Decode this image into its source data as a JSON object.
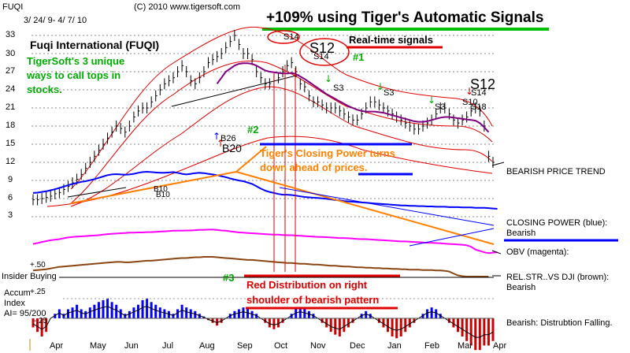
{
  "header": {
    "ticker": "FUQI",
    "date_range": "3/ 24/ 9- 4/ 7/ 10",
    "copyright": "(C) 2010 www.tigersoft.com",
    "headline": "+109% using Tiger's Automatic Signals",
    "company": "Fuqi International (FUQI)",
    "subtitle_lines": [
      "TigerSoft's 3 unique",
      "ways to call tops in",
      "stocks."
    ]
  },
  "colors": {
    "price_bars": "#000000",
    "ma_red": "#e00000",
    "ma_purple": "#800080",
    "closing_power": "#0000ff",
    "obv": "#ff00ff",
    "rel_strength": "#8b4513",
    "trend_orange": "#ff8000",
    "accum_pos": "#0000ff",
    "accum_neg": "#cc0000",
    "headline_underline": "#00c000",
    "label_green": "#00aa00"
  },
  "chart_data": {
    "type": "line",
    "title": "Fuqi International (FUQI)",
    "x_axis": {
      "labels": [
        "Apr",
        "May",
        "Jun",
        "Jul",
        "Aug",
        "Sep",
        "Oct",
        "Nov",
        "Dec",
        "Jan",
        "Feb",
        "Mar",
        "Apr"
      ]
    },
    "y_axis": {
      "ticks": [
        33,
        30,
        27,
        24,
        21,
        18,
        15,
        12,
        9,
        6,
        3
      ],
      "range": [
        3,
        33
      ]
    },
    "price_closes": [
      5.8,
      5.8,
      6,
      6.2,
      6.4,
      6.8,
      7,
      7.5,
      8,
      8.6,
      9.2,
      10,
      11,
      12,
      13,
      14,
      15,
      16,
      17,
      18,
      17.6,
      17,
      18,
      19.5,
      20.5,
      21,
      21,
      22,
      23,
      24,
      25,
      25.5,
      26,
      27,
      28,
      27,
      25.5,
      25,
      26,
      27,
      28.5,
      29,
      29.5,
      30,
      31,
      32,
      33,
      31.5,
      30,
      30,
      29,
      27,
      26,
      25,
      25,
      25.5,
      26,
      27,
      28,
      28.5,
      27,
      25,
      24.5,
      23,
      22,
      22,
      21.5,
      21,
      21,
      21,
      20.5,
      20,
      19.5,
      19,
      19,
      20,
      21,
      22,
      22,
      21.5,
      21,
      20.5,
      20,
      19.5,
      19,
      18.5,
      18,
      17.5,
      17.5,
      18,
      18.5,
      19,
      20,
      21,
      21,
      20,
      19,
      18.5,
      19,
      19.5,
      20.5,
      21,
      20.5,
      18,
      13,
      12
    ],
    "ma_purple_closes": [
      null,
      null,
      null,
      null,
      null,
      null,
      null,
      null,
      null,
      null,
      null,
      null,
      null,
      null,
      null,
      null,
      null,
      null,
      null,
      null,
      null,
      null,
      null,
      null,
      null,
      null,
      null,
      null,
      null,
      null,
      null,
      null,
      null,
      null,
      null,
      null,
      null,
      null,
      null,
      null,
      null,
      null,
      25,
      26,
      27,
      27.5,
      28,
      28.3,
      28.4,
      28.4,
      28.3,
      28,
      27.6,
      27.2,
      27,
      26.9,
      26.8,
      26.7,
      26.7,
      26.8,
      26.6,
      26.2,
      25.8,
      25.3,
      24.8,
      24.3,
      23.8,
      23.3,
      22.9,
      22.5,
      22.1,
      21.7,
      21.3,
      21,
      20.7,
      20.5,
      20.4,
      20.4,
      20.4,
      20.3,
      20.2,
      20,
      19.8,
      19.6,
      19.4,
      19.2,
      19,
      18.8,
      18.7,
      18.7,
      18.8,
      19,
      19.2,
      19.4,
      19.5,
      19.5,
      19.4,
      19.3,
      19.2,
      19.1,
      19,
      18.9,
      18.5,
      17.8,
      17
    ],
    "closing_power_closes": [
      5.5,
      5.6,
      5.8,
      6,
      6.3,
      6.6,
      7,
      7.4,
      7.8,
      8.2,
      8.5,
      8.8,
      9,
      9.3,
      9.6,
      10,
      10.4,
      10.8,
      11,
      11.1,
      11,
      10.9,
      11,
      11.2,
      11.5,
      11.7,
      11.8,
      11.7,
      11.6,
      11.5,
      11.5,
      11.6,
      11.7,
      11.5,
      11.2,
      11,
      11.2,
      11.4,
      11.5,
      11.4,
      11.2,
      11,
      10.8,
      10.5,
      10.2,
      9.8,
      9.5,
      9.2,
      9,
      8.6,
      8.2,
      7.5,
      6.8,
      6.2,
      5.8,
      5.5,
      5.2,
      5,
      5,
      4.9,
      4.7,
      4.5,
      4.3,
      4.2,
      4.1,
      4,
      3.9,
      3.8,
      3.6,
      3.4,
      3.3,
      3.1,
      3,
      2.9,
      2.8,
      2.7,
      2.6,
      2.5,
      2.4,
      2.3,
      2.2,
      2.1,
      2,
      1.9,
      1.8,
      1.8,
      1.7,
      1.7,
      1.6,
      1.6,
      1.5,
      1.5,
      1.4,
      1.4,
      1.4,
      1.3,
      1.3,
      1.3,
      1.2,
      1.2,
      1.2,
      1.1,
      1.1,
      1.1,
      1,
      0.9,
      0.8
    ],
    "obv_closes": [
      0.5,
      0.8,
      1.2,
      1.5,
      1.8,
      2,
      2.2,
      2.5,
      2.8,
      3,
      3.1,
      3.2,
      3.3,
      3.4,
      3.5,
      3.6,
      3.8,
      4,
      4.1,
      4.2,
      4.3,
      4.4,
      4.5,
      4.5,
      4.6,
      4.6,
      4.7,
      4.7,
      4.8,
      4.9,
      5,
      5.1,
      5.2,
      5.2,
      5.2,
      5.3,
      5.3,
      5.4,
      5.5,
      5.5,
      5.6,
      5.6,
      5.5,
      5.3,
      5.2,
      5,
      4.8,
      4.6,
      4.5,
      4.4,
      4.3,
      4.2,
      4.1,
      4,
      3.9,
      3.8,
      3.8,
      3.7,
      3.6,
      3.6,
      3.5,
      3.4,
      3.3,
      3.2,
      3.1,
      3,
      3,
      2.9,
      2.8,
      2.7,
      2.6,
      2.6,
      2.5,
      2.4,
      2.3,
      2.2,
      2.2,
      2.1,
      2,
      1.9,
      1.8,
      1.7,
      1.6,
      1.5,
      1.4,
      1.4,
      1.3,
      1.2,
      1.1,
      1,
      0.9,
      0.9,
      0.8,
      0.7,
      0.6,
      0.5,
      0.4,
      0.3,
      0.2,
      0,
      -0.5,
      -1.5,
      -2,
      -2.5,
      -2.8,
      -2.6,
      -2.5
    ],
    "rel_strength_closes": [
      0.3,
      0.4,
      0.5,
      0.6,
      0.8,
      1,
      1.2,
      1.3,
      1.4,
      1.5,
      1.6,
      1.7,
      1.8,
      1.9,
      2,
      2.1,
      2.2,
      2.3,
      2.4,
      2.5,
      2.5,
      2.4,
      2.4,
      2.5,
      2.6,
      2.7,
      2.8,
      2.8,
      2.9,
      3,
      3.1,
      3.2,
      3.3,
      3.4,
      3.5,
      3.5,
      3.6,
      3.7,
      3.7,
      3.8,
      3.8,
      3.8,
      3.7,
      3.6,
      3.5,
      3.4,
      3.3,
      3.2,
      3.1,
      3,
      3,
      2.9,
      2.8,
      2.7,
      2.6,
      2.5,
      2.4,
      2.3,
      2.2,
      2.2,
      2.1,
      2,
      2,
      1.9,
      1.8,
      1.8,
      1.7,
      1.6,
      1.5,
      1.5,
      1.4,
      1.3,
      1.3,
      1.2,
      1.1,
      1.1,
      1,
      1,
      0.9,
      0.9,
      0.8,
      0.8,
      0.7,
      0.7,
      0.6,
      0.6,
      0.5,
      0.5,
      0.5,
      0.4,
      0.4,
      0.4,
      0.3,
      0.3,
      0.2,
      0,
      -0.5,
      -1,
      -1.2,
      -1.3,
      -1.3,
      -1.3,
      -1.3,
      -1.3,
      -1.3
    ],
    "accum_index_closes": [
      -0.1,
      -0.15,
      -0.2,
      -0.15,
      0,
      0.05,
      0.1,
      0.05,
      0.1,
      0.12,
      0.15,
      0.1,
      0.08,
      0.12,
      0.15,
      0.18,
      0.2,
      0.22,
      0.18,
      0.15,
      0.1,
      0.05,
      0.08,
      0.12,
      0.15,
      0.2,
      0.22,
      0.18,
      0.15,
      0.12,
      0.1,
      0.08,
      0.05,
      0.1,
      0.15,
      0.12,
      0.1,
      0.08,
      0.05,
      0.02,
      -0.02,
      -0.05,
      -0.08,
      -0.05,
      0,
      0.05,
      0.08,
      0.1,
      0.12,
      0.1,
      0.08,
      0.05,
      0,
      -0.05,
      -0.1,
      -0.12,
      -0.1,
      -0.05,
      0,
      0.05,
      0.1,
      0.12,
      0.1,
      0.08,
      0.05,
      0,
      -0.05,
      -0.1,
      -0.15,
      -0.18,
      -0.2,
      -0.15,
      -0.1,
      -0.05,
      0,
      0.05,
      0.08,
      0.05,
      0,
      -0.05,
      -0.1,
      -0.15,
      -0.2,
      -0.22,
      -0.2,
      -0.15,
      -0.1,
      -0.05,
      0,
      0.05,
      0.1,
      0.12,
      0.1,
      0.05,
      0,
      -0.05,
      -0.1,
      -0.15,
      -0.2,
      -0.25,
      -0.3,
      -0.35,
      -0.35,
      -0.3,
      -0.3,
      -0.25
    ],
    "signals": [
      "S14",
      "S12",
      "S14",
      "S3",
      "S3",
      "S3",
      "S12",
      "S14",
      "S10",
      "S18",
      "B26",
      "B20",
      "B10",
      "B10",
      "#1",
      "#2",
      "#3"
    ],
    "annotations": {
      "real_time": "Real-time signals",
      "cp_turns": [
        "Tiger's Closing Power turns",
        "down ahead of prices."
      ],
      "red_dist": [
        "Red Distribution on right",
        "shoulder of bearish pattern"
      ]
    },
    "panel_labels": {
      "trend": "BEARISH PRICE TREND",
      "cp": [
        "CLOSING POWER (blue):",
        "Bearish"
      ],
      "obv": "OBV (magenta):",
      "rel": [
        "REL.STR..VS DJI (brown):",
        "Bearish"
      ],
      "insider": "Insider Buying",
      "accum": [
        "Accum",
        "Index"
      ],
      "ai": "AI= 95/200",
      "dist": "Bearish: Distrubtion Falling."
    },
    "accum_ticks": [
      "+.50",
      "+.25",
      "-.25"
    ]
  }
}
